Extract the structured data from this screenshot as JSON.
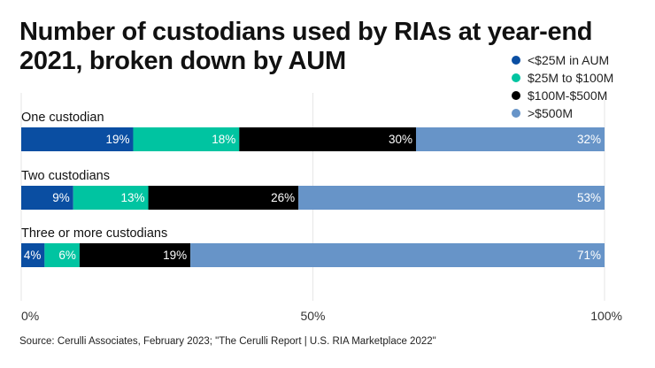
{
  "chart_data": {
    "type": "bar",
    "orientation": "horizontal",
    "stacked": true,
    "title": "Number of custodians used by RIAs at year-end 2021, broken down by AUM",
    "categories": [
      "One custodian",
      "Two custodians",
      "Three or more custodians"
    ],
    "series": [
      {
        "name": "<$25M in AUM",
        "color": "#0a4ea2",
        "values": [
          19,
          9,
          4
        ]
      },
      {
        "name": "$25M to $100M",
        "color": "#00c4a1",
        "values": [
          18,
          13,
          6
        ]
      },
      {
        "name": "$100M-$500M",
        "color": "#000000",
        "values": [
          30,
          26,
          19
        ]
      },
      {
        "name": ">$500M",
        "color": "#6794c8",
        "values": [
          32,
          53,
          71
        ]
      }
    ],
    "value_suffix": "%",
    "xlim": [
      0,
      100
    ],
    "xticks": [
      "0%",
      "50%",
      "100%"
    ],
    "grid": true,
    "legend_placement": "top-right",
    "source": "Source: Cerulli Associates, February 2023; \"The Cerulli Report | U.S. RIA Marketplace 2022\""
  }
}
